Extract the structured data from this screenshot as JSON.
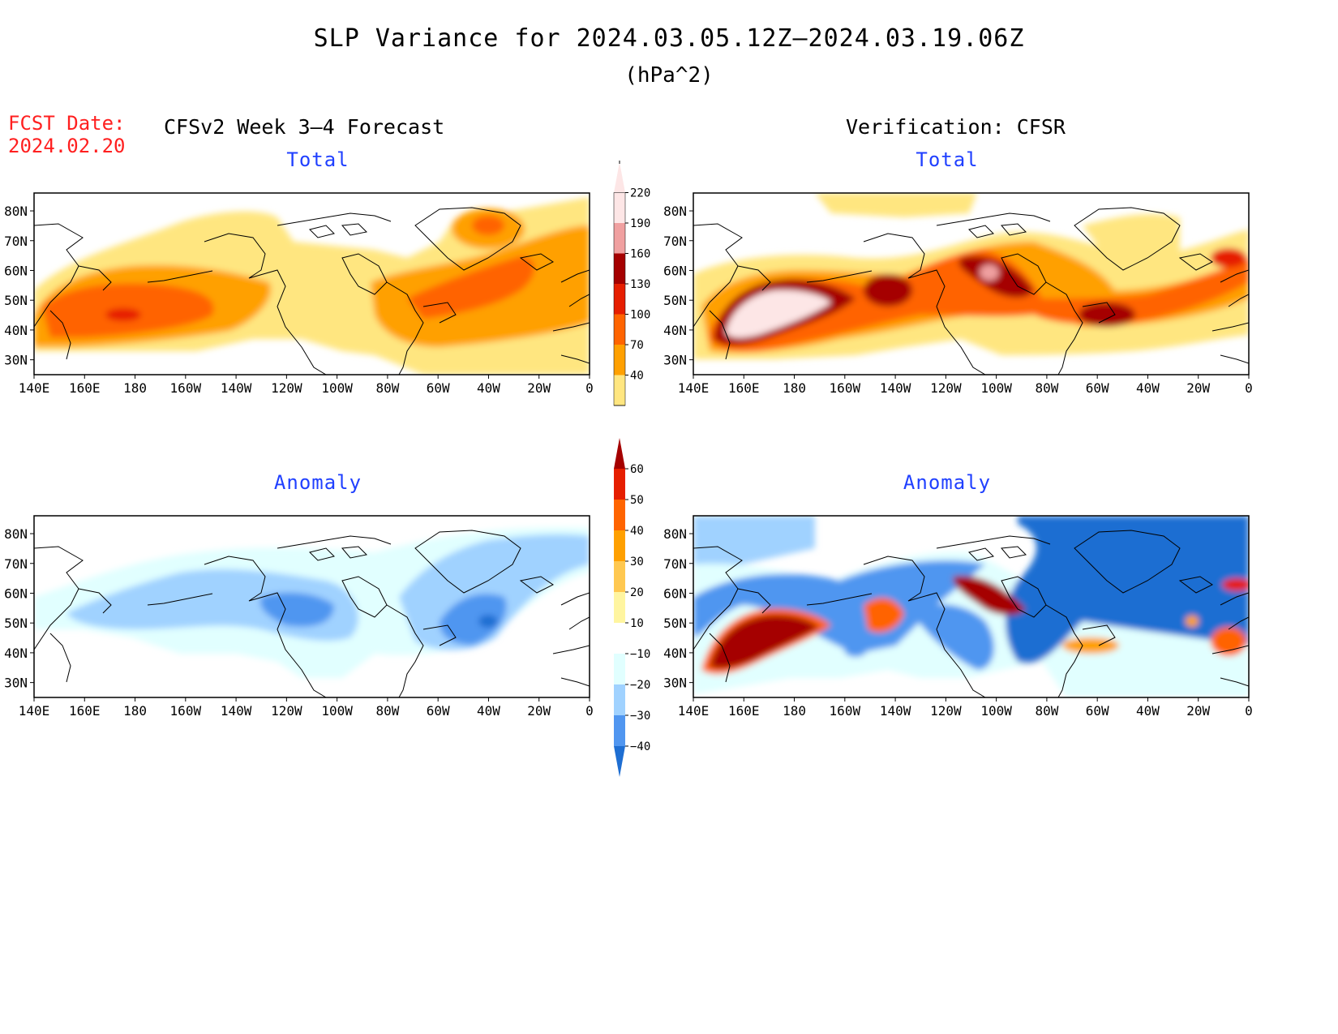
{
  "title": "SLP Variance for 2024.03.05.12Z–2024.03.19.06Z",
  "units": "(hPa^2)",
  "fcst_label": "FCST Date:",
  "fcst_date": "2024.02.20",
  "columns": {
    "left": "CFSv2 Week 3–4 Forecast",
    "right": "Verification: CFSR"
  },
  "panels": {
    "forecast_total": "Total",
    "verification_total": "Total",
    "forecast_anomaly": "Anomaly",
    "verification_anomaly": "Anomaly"
  },
  "lat_ticks": [
    "80N",
    "70N",
    "60N",
    "50N",
    "40N",
    "30N"
  ],
  "lon_ticks": [
    "140E",
    "160E",
    "180",
    "160W",
    "140W",
    "120W",
    "100W",
    "80W",
    "60W",
    "40W",
    "20W",
    "0"
  ],
  "total_colorbar": {
    "levels": [
      "40",
      "70",
      "100",
      "130",
      "160",
      "190",
      "220"
    ],
    "colors": [
      "#ffe680",
      "#ffa000",
      "#ff6400",
      "#e61e00",
      "#a50000",
      "#f0a0a0",
      "#fde6e6"
    ]
  },
  "anomaly_colorbar": {
    "levels": [
      "60",
      "50",
      "40",
      "30",
      "20",
      "10",
      "−10",
      "−20",
      "−30",
      "−40"
    ],
    "colors": [
      "#a50000",
      "#e61e00",
      "#ff6400",
      "#ffa000",
      "#ffc850",
      "#fff5a0",
      "#ffffff",
      "#e1ffff",
      "#a0d2ff",
      "#5096f0",
      "#1e6ed2"
    ]
  }
}
